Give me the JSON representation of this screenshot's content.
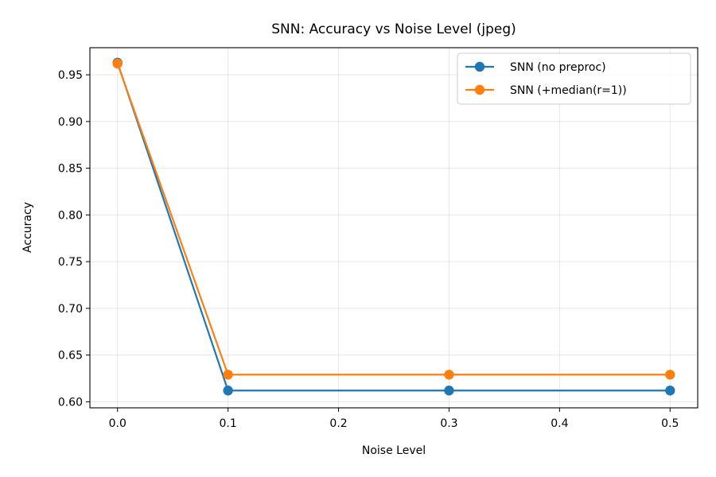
{
  "chart_data": {
    "type": "line",
    "title": "SNN: Accuracy vs Noise Level (jpeg)",
    "xlabel": "Noise Level",
    "ylabel": "Accuracy",
    "x": [
      0.0,
      0.1,
      0.3,
      0.5
    ],
    "xlim": [
      -0.025,
      0.525
    ],
    "ylim": [
      0.5935,
      0.979
    ],
    "xticks": [
      "0.0",
      "0.1",
      "0.2",
      "0.3",
      "0.4",
      "0.5"
    ],
    "yticks": [
      "0.60",
      "0.65",
      "0.70",
      "0.75",
      "0.80",
      "0.85",
      "0.90",
      "0.95"
    ],
    "grid": true,
    "legend_position": "top-right",
    "series": [
      {
        "name": "SNN (no preproc)",
        "color": "#1f77b4",
        "values": [
          0.963,
          0.612,
          0.612,
          0.612
        ]
      },
      {
        "name": "SNN (+median(r=1))",
        "color": "#ff7f0e",
        "values": [
          0.962,
          0.629,
          0.629,
          0.629
        ]
      }
    ]
  }
}
